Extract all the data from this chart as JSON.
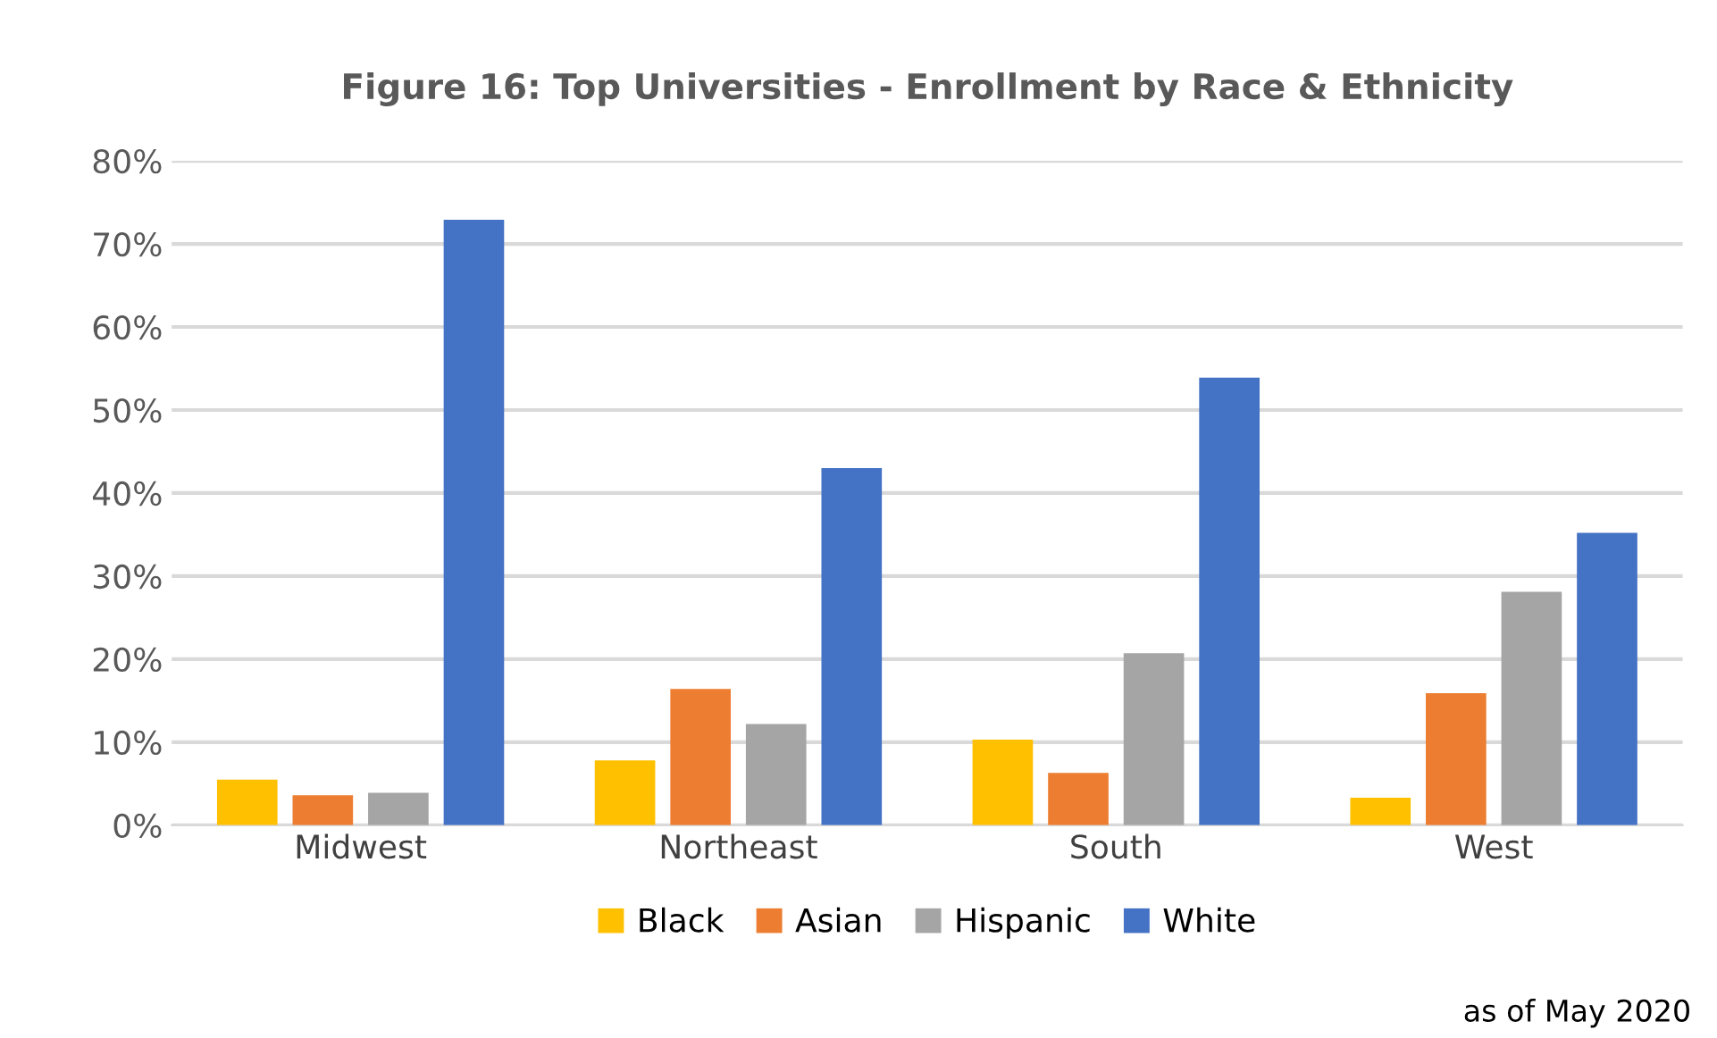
{
  "chart_data": {
    "type": "bar",
    "title": "Figure 16: Top Universities - Enrollment by Race & Ethnicity",
    "categories": [
      "Midwest",
      "Northeast",
      "South",
      "West"
    ],
    "series": [
      {
        "name": "Black",
        "color": "#ffc000",
        "values": [
          5.5,
          7.8,
          10.3,
          3.3
        ]
      },
      {
        "name": "Asian",
        "color": "#ed7d31",
        "values": [
          3.6,
          16.4,
          6.3,
          15.9
        ]
      },
      {
        "name": "Hispanic",
        "color": "#a5a5a5",
        "values": [
          3.9,
          12.2,
          20.7,
          28.1
        ]
      },
      {
        "name": "White",
        "color": "#4472c4",
        "values": [
          72.9,
          43.0,
          53.9,
          35.2
        ]
      }
    ],
    "ylim": [
      0,
      80
    ],
    "yticks": [
      {
        "value": 0,
        "label": "0%"
      },
      {
        "value": 10,
        "label": "10%"
      },
      {
        "value": 20,
        "label": "20%"
      },
      {
        "value": 30,
        "label": "30%"
      },
      {
        "value": 40,
        "label": "40%"
      },
      {
        "value": 50,
        "label": "50%"
      },
      {
        "value": 60,
        "label": "60%"
      },
      {
        "value": 70,
        "label": "70%"
      },
      {
        "value": 80,
        "label": "80%"
      }
    ],
    "grid": "y",
    "legend": "bottom",
    "annotations": [
      "as of May 2020"
    ]
  }
}
